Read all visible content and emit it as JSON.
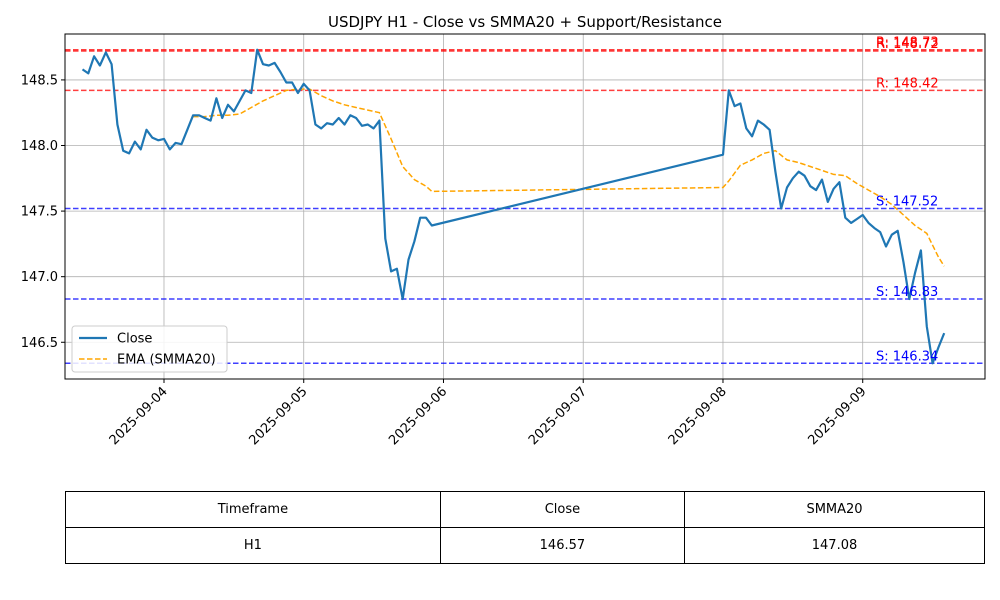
{
  "chart_data": {
    "type": "line",
    "title": "USDJPY H1 - Close vs SMMA20 + Support/Resistance",
    "x_type": "datetime",
    "x_ticks": [
      "2025-09-04",
      "2025-09-05",
      "2025-09-06",
      "2025-09-07",
      "2025-09-08",
      "2025-09-09"
    ],
    "xlim": [
      "2025-09-03 07:00",
      "2025-09-09 21:00"
    ],
    "y_ticks": [
      146.5,
      147.0,
      147.5,
      148.0,
      148.5
    ],
    "ylim": [
      146.22,
      148.85
    ],
    "grid": true,
    "legend": {
      "position": "lower-left",
      "entries": [
        "Close",
        "EMA (SMMA20)"
      ]
    },
    "colors": {
      "close": "#1f77b4",
      "smma": "#ffa500",
      "resistance": "#ff0000",
      "support": "#0000ff"
    },
    "series": [
      {
        "name": "Close",
        "style": "solid",
        "points": [
          [
            "2025-09-03 10:00",
            148.58
          ],
          [
            "2025-09-03 11:00",
            148.55
          ],
          [
            "2025-09-03 12:00",
            148.68
          ],
          [
            "2025-09-03 13:00",
            148.61
          ],
          [
            "2025-09-03 14:00",
            148.71
          ],
          [
            "2025-09-03 15:00",
            148.62
          ],
          [
            "2025-09-03 16:00",
            148.16
          ],
          [
            "2025-09-03 17:00",
            147.96
          ],
          [
            "2025-09-03 18:00",
            147.94
          ],
          [
            "2025-09-03 19:00",
            148.03
          ],
          [
            "2025-09-03 20:00",
            147.97
          ],
          [
            "2025-09-03 21:00",
            148.12
          ],
          [
            "2025-09-03 22:00",
            148.06
          ],
          [
            "2025-09-03 23:00",
            148.04
          ],
          [
            "2025-09-04 00:00",
            148.05
          ],
          [
            "2025-09-04 01:00",
            147.97
          ],
          [
            "2025-09-04 02:00",
            148.02
          ],
          [
            "2025-09-04 03:00",
            148.01
          ],
          [
            "2025-09-04 04:00",
            148.12
          ],
          [
            "2025-09-04 05:00",
            148.23
          ],
          [
            "2025-09-04 06:00",
            148.23
          ],
          [
            "2025-09-04 07:00",
            148.21
          ],
          [
            "2025-09-04 08:00",
            148.19
          ],
          [
            "2025-09-04 09:00",
            148.36
          ],
          [
            "2025-09-04 10:00",
            148.21
          ],
          [
            "2025-09-04 11:00",
            148.31
          ],
          [
            "2025-09-04 12:00",
            148.26
          ],
          [
            "2025-09-04 13:00",
            148.34
          ],
          [
            "2025-09-04 14:00",
            148.42
          ],
          [
            "2025-09-04 15:00",
            148.4
          ],
          [
            "2025-09-04 16:00",
            148.73
          ],
          [
            "2025-09-04 17:00",
            148.62
          ],
          [
            "2025-09-04 18:00",
            148.61
          ],
          [
            "2025-09-04 19:00",
            148.63
          ],
          [
            "2025-09-04 20:00",
            148.56
          ],
          [
            "2025-09-04 21:00",
            148.48
          ],
          [
            "2025-09-04 22:00",
            148.48
          ],
          [
            "2025-09-04 23:00",
            148.4
          ],
          [
            "2025-09-05 00:00",
            148.47
          ],
          [
            "2025-09-05 01:00",
            148.42
          ],
          [
            "2025-09-05 02:00",
            148.16
          ],
          [
            "2025-09-05 03:00",
            148.13
          ],
          [
            "2025-09-05 04:00",
            148.17
          ],
          [
            "2025-09-05 05:00",
            148.16
          ],
          [
            "2025-09-05 06:00",
            148.21
          ],
          [
            "2025-09-05 07:00",
            148.16
          ],
          [
            "2025-09-05 08:00",
            148.23
          ],
          [
            "2025-09-05 09:00",
            148.21
          ],
          [
            "2025-09-05 10:00",
            148.15
          ],
          [
            "2025-09-05 11:00",
            148.16
          ],
          [
            "2025-09-05 12:00",
            148.13
          ],
          [
            "2025-09-05 13:00",
            148.19
          ],
          [
            "2025-09-05 14:00",
            147.29
          ],
          [
            "2025-09-05 15:00",
            147.04
          ],
          [
            "2025-09-05 16:00",
            147.06
          ],
          [
            "2025-09-05 17:00",
            146.83
          ],
          [
            "2025-09-05 18:00",
            147.13
          ],
          [
            "2025-09-05 19:00",
            147.27
          ],
          [
            "2025-09-05 20:00",
            147.45
          ],
          [
            "2025-09-05 21:00",
            147.45
          ],
          [
            "2025-09-05 22:00",
            147.39
          ],
          [
            "2025-09-08 00:00",
            147.93
          ],
          [
            "2025-09-08 01:00",
            148.42
          ],
          [
            "2025-09-08 02:00",
            148.3
          ],
          [
            "2025-09-08 03:00",
            148.32
          ],
          [
            "2025-09-08 04:00",
            148.13
          ],
          [
            "2025-09-08 05:00",
            148.07
          ],
          [
            "2025-09-08 06:00",
            148.19
          ],
          [
            "2025-09-08 07:00",
            148.16
          ],
          [
            "2025-09-08 08:00",
            148.12
          ],
          [
            "2025-09-08 09:00",
            147.8
          ],
          [
            "2025-09-08 10:00",
            147.52
          ],
          [
            "2025-09-08 11:00",
            147.68
          ],
          [
            "2025-09-08 12:00",
            147.75
          ],
          [
            "2025-09-08 13:00",
            147.8
          ],
          [
            "2025-09-08 14:00",
            147.77
          ],
          [
            "2025-09-08 15:00",
            147.69
          ],
          [
            "2025-09-08 16:00",
            147.66
          ],
          [
            "2025-09-08 17:00",
            147.74
          ],
          [
            "2025-09-08 18:00",
            147.57
          ],
          [
            "2025-09-08 19:00",
            147.67
          ],
          [
            "2025-09-08 20:00",
            147.72
          ],
          [
            "2025-09-08 21:00",
            147.45
          ],
          [
            "2025-09-08 22:00",
            147.41
          ],
          [
            "2025-09-08 23:00",
            147.44
          ],
          [
            "2025-09-09 00:00",
            147.47
          ],
          [
            "2025-09-09 01:00",
            147.41
          ],
          [
            "2025-09-09 02:00",
            147.37
          ],
          [
            "2025-09-09 03:00",
            147.34
          ],
          [
            "2025-09-09 04:00",
            147.23
          ],
          [
            "2025-09-09 05:00",
            147.32
          ],
          [
            "2025-09-09 06:00",
            147.35
          ],
          [
            "2025-09-09 07:00",
            147.11
          ],
          [
            "2025-09-09 08:00",
            146.83
          ],
          [
            "2025-09-09 09:00",
            147.03
          ],
          [
            "2025-09-09 10:00",
            147.2
          ],
          [
            "2025-09-09 11:00",
            146.62
          ],
          [
            "2025-09-09 12:00",
            146.34
          ],
          [
            "2025-09-09 13:00",
            146.46
          ],
          [
            "2025-09-09 14:00",
            146.57
          ]
        ]
      },
      {
        "name": "EMA (SMMA20)",
        "style": "dashed",
        "points": [
          [
            "2025-09-04 05:00",
            148.22
          ],
          [
            "2025-09-04 07:00",
            148.22
          ],
          [
            "2025-09-04 09:00",
            148.23
          ],
          [
            "2025-09-04 11:00",
            148.23
          ],
          [
            "2025-09-04 13:00",
            148.24
          ],
          [
            "2025-09-04 15:00",
            148.29
          ],
          [
            "2025-09-04 17:00",
            148.34
          ],
          [
            "2025-09-04 19:00",
            148.38
          ],
          [
            "2025-09-04 21:00",
            148.42
          ],
          [
            "2025-09-04 23:00",
            148.43
          ],
          [
            "2025-09-05 01:00",
            148.43
          ],
          [
            "2025-09-05 03:00",
            148.38
          ],
          [
            "2025-09-05 05:00",
            148.34
          ],
          [
            "2025-09-05 07:00",
            148.31
          ],
          [
            "2025-09-05 09:00",
            148.29
          ],
          [
            "2025-09-05 11:00",
            148.27
          ],
          [
            "2025-09-05 13:00",
            148.25
          ],
          [
            "2025-09-05 15:00",
            148.05
          ],
          [
            "2025-09-05 17:00",
            147.84
          ],
          [
            "2025-09-05 19:00",
            147.74
          ],
          [
            "2025-09-05 21:00",
            147.69
          ],
          [
            "2025-09-05 22:00",
            147.65
          ],
          [
            "2025-09-08 00:00",
            147.68
          ],
          [
            "2025-09-08 01:00",
            147.73
          ],
          [
            "2025-09-08 03:00",
            147.85
          ],
          [
            "2025-09-08 05:00",
            147.89
          ],
          [
            "2025-09-08 07:00",
            147.94
          ],
          [
            "2025-09-08 09:00",
            147.96
          ],
          [
            "2025-09-08 11:00",
            147.89
          ],
          [
            "2025-09-08 13:00",
            147.87
          ],
          [
            "2025-09-08 15:00",
            147.84
          ],
          [
            "2025-09-08 17:00",
            147.81
          ],
          [
            "2025-09-08 19:00",
            147.78
          ],
          [
            "2025-09-08 21:00",
            147.77
          ],
          [
            "2025-09-08 23:00",
            147.71
          ],
          [
            "2025-09-09 01:00",
            147.66
          ],
          [
            "2025-09-09 03:00",
            147.61
          ],
          [
            "2025-09-09 05:00",
            147.55
          ],
          [
            "2025-09-09 07:00",
            147.47
          ],
          [
            "2025-09-09 09:00",
            147.39
          ],
          [
            "2025-09-09 11:00",
            147.33
          ],
          [
            "2025-09-09 12:00",
            147.24
          ],
          [
            "2025-09-09 13:00",
            147.15
          ],
          [
            "2025-09-09 14:00",
            147.08
          ]
        ]
      }
    ],
    "levels": [
      {
        "kind": "resistance",
        "value": 148.73,
        "label": "R: 148.73"
      },
      {
        "kind": "resistance",
        "value": 148.72,
        "label": "R: 148.72"
      },
      {
        "kind": "resistance",
        "value": 148.42,
        "label": "R: 148.42"
      },
      {
        "kind": "support",
        "value": 147.52,
        "label": "S: 147.52"
      },
      {
        "kind": "support",
        "value": 146.83,
        "label": "S: 146.83"
      },
      {
        "kind": "support",
        "value": 146.34,
        "label": "S: 146.34"
      }
    ]
  },
  "table": {
    "headers": [
      "Timeframe",
      "Close",
      "SMMA20"
    ],
    "rows": [
      [
        "H1",
        "146.57",
        "147.08"
      ]
    ]
  }
}
